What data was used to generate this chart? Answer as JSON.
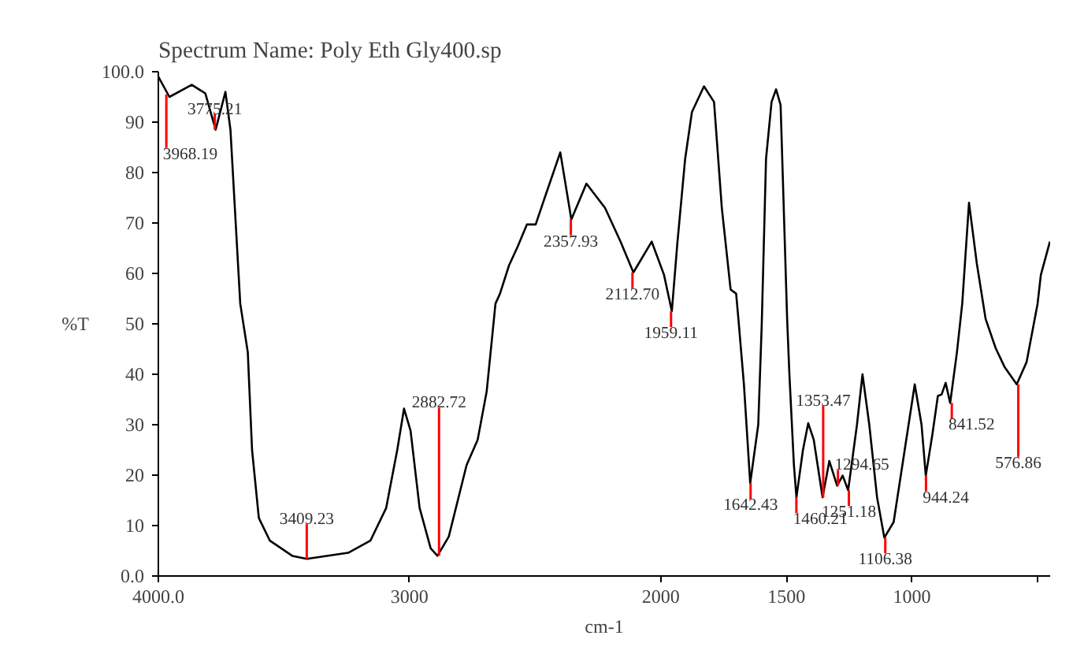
{
  "chart_data": {
    "type": "line",
    "title": "Spectrum Name: Poly Eth Gly400.sp",
    "xlabel": "cm-1",
    "ylabel": "%T",
    "x": [
      4000,
      3956,
      3867,
      3813,
      3772,
      3733,
      3713,
      3674,
      3644,
      3627,
      3600,
      3556,
      3467,
      3409,
      3244,
      3156,
      3093,
      3049,
      3022,
      2996,
      2960,
      2916,
      2889,
      2844,
      2773,
      2729,
      2693,
      2658,
      2640,
      2604,
      2569,
      2533,
      2498,
      2462,
      2400,
      2356,
      2296,
      2222,
      2160,
      2109,
      2036,
      1987,
      1956,
      1934,
      1903,
      1876,
      1828,
      1788,
      1757,
      1722,
      1700,
      1691,
      1669,
      1644,
      1612,
      1598,
      1581,
      1559,
      1541,
      1523,
      1497,
      1488,
      1470,
      1460,
      1434,
      1413,
      1391,
      1356,
      1329,
      1298,
      1276,
      1254,
      1219,
      1197,
      1170,
      1139,
      1110,
      1073,
      1029,
      989,
      962,
      945,
      919,
      897,
      882,
      866,
      848,
      821,
      800,
      773,
      742,
      707,
      667,
      632,
      583,
      544,
      500,
      487,
      451
    ],
    "series": [
      {
        "color": "#000000",
        "values": [
          99,
          95.0,
          97.4,
          95.7,
          88.5,
          96,
          88.5,
          54,
          44.4,
          25,
          11.5,
          7,
          4,
          3.4,
          4.6,
          7,
          13.5,
          25,
          33.2,
          28.8,
          13.5,
          5.5,
          4,
          7.8,
          22,
          27,
          36.6,
          54,
          56,
          61.6,
          65.4,
          69.7,
          69.7,
          75,
          84,
          70.7,
          77.8,
          73,
          66.3,
          60.2,
          66.3,
          59.7,
          52.5,
          66,
          82.7,
          92,
          97.1,
          94,
          73,
          56.8,
          56,
          51,
          38,
          18.4,
          30,
          50,
          82.7,
          94,
          96.5,
          93.4,
          51,
          40,
          22,
          15.6,
          25,
          30.3,
          27,
          15.6,
          22.8,
          17.9,
          19.9,
          17,
          30,
          40,
          30,
          15.6,
          7.6,
          10.7,
          25,
          38,
          30,
          19.9,
          28,
          35.7,
          36,
          38.3,
          34.3,
          44.4,
          54,
          74,
          62,
          51,
          45.2,
          41.5,
          38,
          42.4,
          54,
          59.7,
          66.3
        ]
      }
    ],
    "xlim": [
      4000,
      450
    ],
    "ylim": [
      0,
      100
    ],
    "xticks": [
      {
        "value": 4000,
        "label": "4000.0"
      },
      3000,
      2000,
      1500,
      1000,
      {
        "value": 500,
        "label": null
      }
    ],
    "yticks": [
      {
        "value": 0,
        "label": "0.0"
      },
      10,
      20,
      30,
      40,
      50,
      60,
      70,
      80,
      90,
      {
        "value": 100,
        "label": "100.0"
      }
    ],
    "grid": false,
    "annotations": [
      {
        "text": "3968.19",
        "x": 3968.19,
        "y": 95.5
      },
      {
        "text": "3775.21",
        "x": 3775.21,
        "y": 88.5
      },
      {
        "text": "3409.23",
        "x": 3409.23,
        "y": 3.4
      },
      {
        "text": "2882.72",
        "x": 2882.72,
        "y": 4
      },
      {
        "text": "2357.93",
        "x": 2357.93,
        "y": 70.7
      },
      {
        "text": "2112.70",
        "x": 2112.7,
        "y": 60.2
      },
      {
        "text": "1959.11",
        "x": 1959.11,
        "y": 52.5
      },
      {
        "text": "1642.43",
        "x": 1642.43,
        "y": 18.4
      },
      {
        "text": "1460.21",
        "x": 1460.21,
        "y": 15.6
      },
      {
        "text": "1353.47",
        "x": 1353.47,
        "y": 15.6
      },
      {
        "text": "1294.65",
        "x": 1294.65,
        "y": 17.9
      },
      {
        "text": "1251.18",
        "x": 1251.18,
        "y": 17
      },
      {
        "text": "1106.38",
        "x": 1106.38,
        "y": 7.6
      },
      {
        "text": "944.24",
        "x": 944.24,
        "y": 19.9
      },
      {
        "text": "841.52",
        "x": 841.52,
        "y": 34.3
      },
      {
        "text": "576.86",
        "x": 576.86,
        "y": 38
      }
    ]
  }
}
